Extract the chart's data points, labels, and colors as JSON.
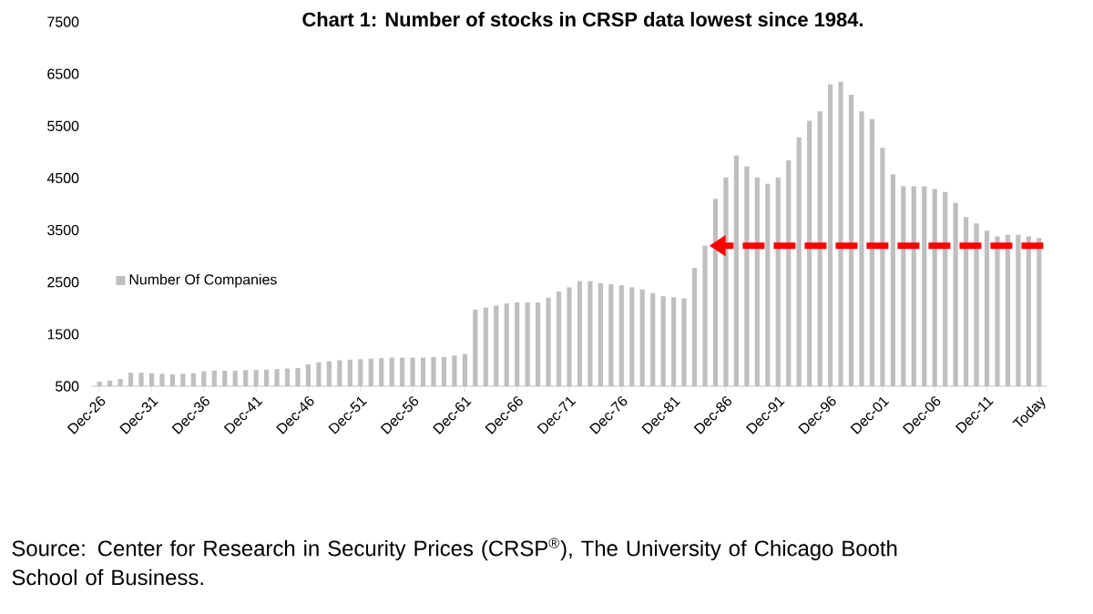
{
  "chart_data": {
    "type": "bar",
    "title": "Chart 1: Number of stocks in CRSP data lowest since 1984.",
    "categories": [
      "Dec-26",
      null,
      null,
      null,
      null,
      "Dec-31",
      null,
      null,
      null,
      null,
      "Dec-36",
      null,
      null,
      null,
      null,
      "Dec-41",
      null,
      null,
      null,
      null,
      "Dec-46",
      null,
      null,
      null,
      null,
      "Dec-51",
      null,
      null,
      null,
      null,
      "Dec-56",
      null,
      null,
      null,
      null,
      "Dec-61",
      null,
      null,
      null,
      null,
      "Dec-66",
      null,
      null,
      null,
      null,
      "Dec-71",
      null,
      null,
      null,
      null,
      "Dec-76",
      null,
      null,
      null,
      null,
      "Dec-81",
      null,
      null,
      null,
      null,
      "Dec-86",
      null,
      null,
      null,
      null,
      "Dec-91",
      null,
      null,
      null,
      null,
      "Dec-96",
      null,
      null,
      null,
      null,
      "Dec-01",
      null,
      null,
      null,
      null,
      "Dec-06",
      null,
      null,
      null,
      null,
      "Dec-11",
      null,
      null,
      null,
      null,
      "Today"
    ],
    "series": [
      {
        "name": "Number Of Companies",
        "color": "#bfbfbf",
        "values": [
          590,
          610,
          640,
          760,
          760,
          750,
          740,
          730,
          740,
          750,
          790,
          800,
          800,
          800,
          810,
          810,
          820,
          830,
          840,
          850,
          920,
          960,
          980,
          1000,
          1010,
          1020,
          1030,
          1040,
          1050,
          1050,
          1050,
          1050,
          1060,
          1060,
          1090,
          1120,
          1970,
          2010,
          2050,
          2090,
          2110,
          2110,
          2110,
          2200,
          2320,
          2400,
          2520,
          2520,
          2480,
          2460,
          2440,
          2400,
          2360,
          2290,
          2230,
          2210,
          2190,
          2770,
          3200,
          4100,
          4510,
          4930,
          4720,
          4510,
          4390,
          4510,
          4840,
          5280,
          5600,
          5780,
          6300,
          6350,
          6100,
          5780,
          5630,
          5080,
          4570,
          4340,
          4340,
          4340,
          4290,
          4230,
          4020,
          3750,
          3630,
          3490,
          3380,
          3410,
          3410,
          3380,
          3350
        ]
      }
    ],
    "ylim": [
      500,
      7500
    ],
    "yticks": [
      500,
      1500,
      2500,
      3500,
      4500,
      5500,
      6500,
      7500
    ],
    "legend": "left",
    "ref_lines": [
      {
        "axis": "y",
        "value": 3200,
        "color": "#ff0000",
        "line_style": "dashed"
      }
    ],
    "annotations": [
      "Source: Center for Research in Security Prices (CRSP$^{®}$), The University of Chicago Booth School of Business."
    ]
  }
}
